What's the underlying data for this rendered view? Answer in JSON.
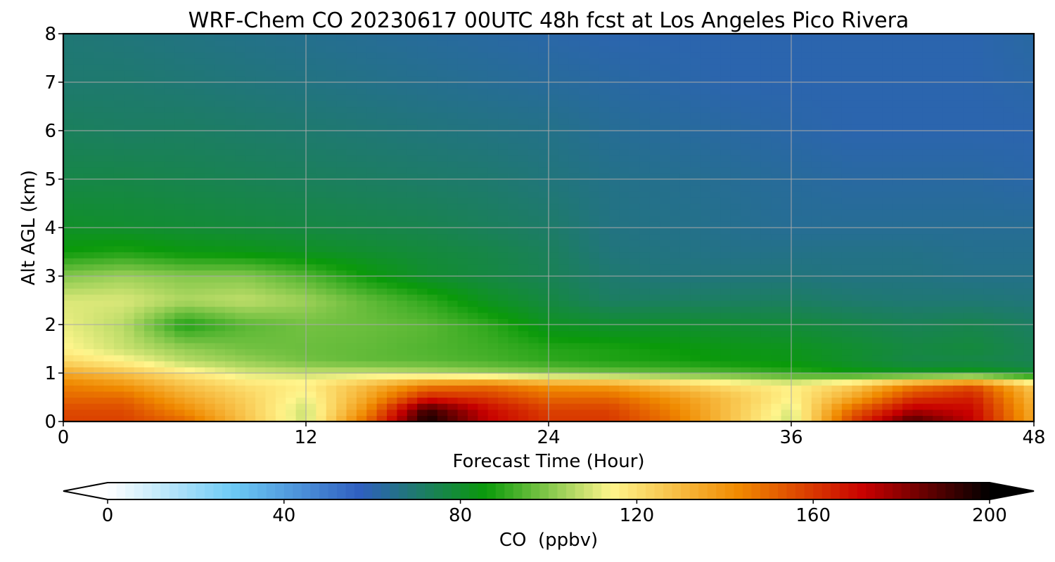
{
  "chart_data": {
    "type": "heatmap",
    "title": "WRF-Chem CO  20230617 00UTC 48h fcst at Los Angeles Pico Rivera",
    "xlabel": "Forecast Time (Hour)",
    "ylabel": "Alt AGL (km)",
    "xlim": [
      0,
      48
    ],
    "ylim": [
      0,
      8
    ],
    "xticks": [
      "0",
      "12",
      "24",
      "36",
      "48"
    ],
    "yticks": [
      "0",
      "1",
      "2",
      "3",
      "4",
      "5",
      "6",
      "7",
      "8"
    ],
    "grid": true,
    "colorbar": {
      "label": "CO  (ppbv)",
      "min": 0,
      "max": 200,
      "ticks": [
        "0",
        "40",
        "80",
        "120",
        "160",
        "200"
      ],
      "extend": "both",
      "colors": [
        "#ffffff",
        "#6ccaf5",
        "#2f5fc0",
        "#0a9a0a",
        "#fff58c",
        "#f08a00",
        "#c80000",
        "#000000"
      ]
    },
    "x": [
      0,
      3,
      6,
      9,
      12,
      15,
      18,
      21,
      24,
      27,
      30,
      33,
      36,
      39,
      42,
      45,
      48
    ],
    "y": [
      0,
      0.25,
      0.5,
      0.75,
      1,
      1.25,
      1.5,
      2,
      2.5,
      3,
      3.5,
      4,
      5,
      6,
      7,
      8
    ],
    "z": [
      [
        158,
        158,
        150,
        128,
        108,
        150,
        198,
        172,
        160,
        160,
        148,
        128,
        108,
        158,
        190,
        172,
        135
      ],
      [
        156,
        156,
        142,
        126,
        108,
        142,
        192,
        170,
        158,
        158,
        145,
        128,
        110,
        150,
        175,
        170,
        133
      ],
      [
        150,
        150,
        135,
        124,
        112,
        135,
        165,
        160,
        150,
        150,
        140,
        128,
        115,
        135,
        160,
        165,
        130
      ],
      [
        145,
        140,
        128,
        120,
        116,
        130,
        145,
        148,
        140,
        138,
        128,
        120,
        115,
        125,
        145,
        155,
        125
      ],
      [
        135,
        128,
        118,
        110,
        108,
        108,
        106,
        103,
        100,
        98,
        96,
        94,
        90,
        86,
        84,
        85,
        80
      ],
      [
        122,
        115,
        106,
        102,
        98,
        96,
        95,
        93,
        90,
        88,
        87,
        85,
        84,
        80,
        76,
        76,
        74
      ],
      [
        115,
        108,
        102,
        98,
        97,
        96,
        94,
        92,
        89,
        88,
        86,
        84,
        83,
        80,
        77,
        78,
        74
      ],
      [
        112,
        106,
        88,
        95,
        98,
        97,
        95,
        90,
        82,
        80,
        80,
        79,
        78,
        76,
        74,
        75,
        72
      ],
      [
        110,
        110,
        105,
        107,
        103,
        96,
        90,
        82,
        77,
        72,
        72,
        72,
        72,
        70,
        69,
        69,
        68
      ],
      [
        100,
        103,
        100,
        100,
        94,
        86,
        80,
        77,
        74,
        70,
        68,
        68,
        68,
        67,
        67,
        66,
        66
      ],
      [
        86,
        88,
        85,
        84,
        82,
        80,
        78,
        76,
        73,
        68,
        67,
        66,
        66,
        66,
        66,
        65,
        65
      ],
      [
        81,
        80,
        79,
        78,
        77,
        76,
        75,
        73,
        71,
        67,
        66,
        65,
        64,
        64,
        64,
        64,
        64
      ],
      [
        76,
        76,
        75,
        74,
        73,
        72,
        71,
        70,
        68,
        66,
        65,
        64,
        63,
        62,
        62,
        62,
        61
      ],
      [
        73,
        72,
        72,
        71,
        70,
        69,
        68,
        67,
        66,
        64,
        63,
        62,
        61,
        60,
        60,
        60,
        60
      ],
      [
        70,
        70,
        69,
        68,
        67,
        66,
        65,
        64,
        63,
        62,
        61,
        60,
        60,
        60,
        60,
        60,
        61
      ],
      [
        69,
        68,
        67,
        66,
        65,
        64,
        63,
        62,
        61,
        60,
        60,
        60,
        60,
        60,
        60,
        60,
        62
      ]
    ]
  }
}
